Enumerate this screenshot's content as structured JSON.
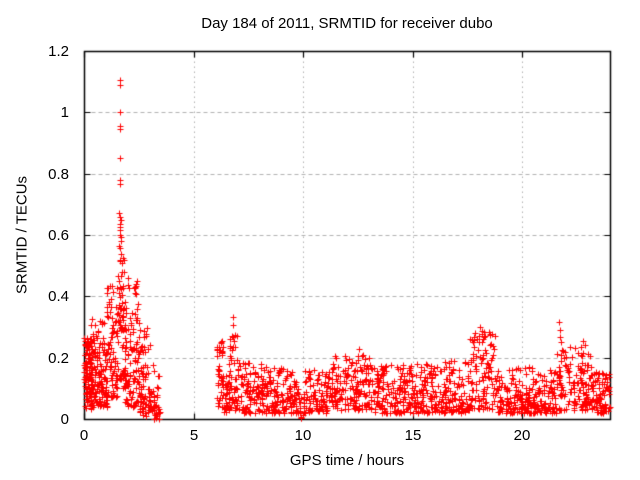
{
  "figure": {
    "background": "#ffffff",
    "text_color": "#000000"
  },
  "chart_data": {
    "type": "scatter",
    "title": "Day 184 of 2011, SRMTID for receiver dubo",
    "xlabel": "GPS time / hours",
    "ylabel": "SRMTID / TECUs",
    "xlim": [
      0,
      24
    ],
    "ylim": [
      0,
      1.2
    ],
    "xticks": [
      {
        "v": 0,
        "label": "0"
      },
      {
        "v": 5,
        "label": "5"
      },
      {
        "v": 10,
        "label": "10"
      },
      {
        "v": 15,
        "label": "15"
      },
      {
        "v": 20,
        "label": "20"
      }
    ],
    "yticks": [
      {
        "v": 0,
        "label": "0"
      },
      {
        "v": 0.2,
        "label": "0.2"
      },
      {
        "v": 0.4,
        "label": "0.4"
      },
      {
        "v": 0.6,
        "label": "0.6"
      },
      {
        "v": 0.8,
        "label": "0.8"
      },
      {
        "v": 1,
        "label": "1"
      },
      {
        "v": 1.2,
        "label": "1.2"
      }
    ],
    "grid": true,
    "grid_color": "#b0b0b0",
    "axis_color": "#000000",
    "legend": "none",
    "marker": {
      "shape": "plus",
      "color": "#ff0000",
      "size": 7
    },
    "data_gaps_hours": [
      [
        3.45,
        6.05
      ]
    ],
    "notable_points": [
      [
        1.63,
        1.105
      ],
      [
        1.66,
        1.09
      ],
      [
        1.645,
        1.0
      ],
      [
        1.635,
        0.955
      ],
      [
        1.655,
        0.945
      ],
      [
        1.64,
        0.85
      ],
      [
        1.65,
        0.78
      ],
      [
        1.66,
        0.765
      ],
      [
        1.6,
        0.672
      ],
      [
        1.63,
        0.66
      ],
      [
        1.67,
        0.648
      ],
      [
        1.645,
        0.636
      ],
      [
        1.62,
        0.625
      ],
      [
        1.655,
        0.615
      ],
      [
        1.635,
        0.6
      ],
      [
        1.7,
        0.592
      ],
      [
        1.68,
        0.58
      ],
      [
        1.59,
        0.565
      ],
      [
        6.79,
        0.332
      ],
      [
        6.82,
        0.305
      ],
      [
        6.76,
        0.27
      ],
      [
        6.84,
        0.255
      ],
      [
        12.55,
        0.228
      ],
      [
        12.52,
        0.205
      ],
      [
        18.05,
        0.3
      ],
      [
        18.15,
        0.288
      ],
      [
        18.3,
        0.27
      ],
      [
        17.95,
        0.262
      ],
      [
        21.68,
        0.315
      ],
      [
        21.73,
        0.29
      ],
      [
        21.7,
        0.268
      ],
      [
        21.76,
        0.25
      ],
      [
        22.78,
        0.255
      ],
      [
        22.85,
        0.24
      ],
      [
        0.07,
        0.245
      ],
      [
        0.12,
        0.225
      ],
      [
        9.88,
        0.004
      ],
      [
        9.92,
        0.006
      ],
      [
        9.9,
        0.002
      ]
    ],
    "density_model": {
      "note": "estimated point clusters read from plot: [x_start, x_end, n_points, y_low, y_high, low_bias]",
      "clusters": [
        [
          0.0,
          0.35,
          85,
          0.08,
          0.27,
          1.1
        ],
        [
          0.05,
          0.45,
          25,
          0.03,
          0.1,
          1.0
        ],
        [
          0.3,
          1.05,
          120,
          0.04,
          0.33,
          1.5
        ],
        [
          1.0,
          1.5,
          75,
          0.07,
          0.46,
          1.6
        ],
        [
          1.5,
          1.9,
          65,
          0.1,
          0.56,
          1.4
        ],
        [
          1.55,
          1.8,
          14,
          0.28,
          0.47,
          1.0
        ],
        [
          1.85,
          2.55,
          110,
          0.04,
          0.46,
          1.7
        ],
        [
          2.5,
          3.0,
          60,
          0.01,
          0.3,
          1.5
        ],
        [
          2.95,
          3.45,
          45,
          0.0,
          0.18,
          1.3
        ],
        [
          6.05,
          6.35,
          40,
          0.04,
          0.26,
          1.3
        ],
        [
          6.35,
          6.65,
          30,
          0.02,
          0.14,
          1.2
        ],
        [
          6.6,
          7.0,
          45,
          0.02,
          0.28,
          1.3
        ],
        [
          7.0,
          8.1,
          95,
          0.02,
          0.19,
          1.5
        ],
        [
          8.1,
          9.75,
          140,
          0.02,
          0.17,
          1.5
        ],
        [
          9.7,
          10.1,
          14,
          0.01,
          0.09,
          1.2
        ],
        [
          10.05,
          11.1,
          85,
          0.02,
          0.16,
          1.4
        ],
        [
          11.1,
          13.1,
          175,
          0.03,
          0.21,
          1.4
        ],
        [
          13.1,
          15.6,
          210,
          0.02,
          0.18,
          1.5
        ],
        [
          15.6,
          17.6,
          165,
          0.02,
          0.19,
          1.5
        ],
        [
          17.6,
          18.75,
          105,
          0.03,
          0.29,
          1.3
        ],
        [
          18.75,
          20.6,
          155,
          0.02,
          0.17,
          1.5
        ],
        [
          20.6,
          21.55,
          75,
          0.02,
          0.16,
          1.4
        ],
        [
          21.55,
          22.1,
          45,
          0.03,
          0.23,
          1.3
        ],
        [
          22.1,
          23.25,
          105,
          0.03,
          0.24,
          1.4
        ],
        [
          23.25,
          24.0,
          75,
          0.02,
          0.16,
          1.4
        ]
      ]
    }
  }
}
